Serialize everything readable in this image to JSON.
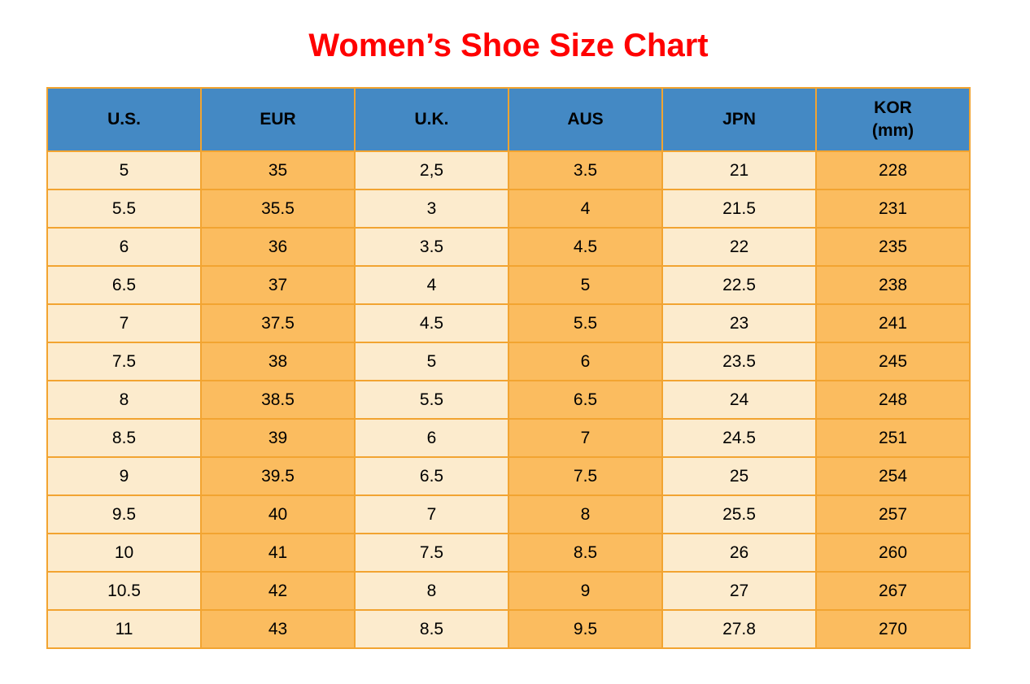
{
  "page": {
    "title": "Women’s Shoe Size Chart"
  },
  "colors": {
    "page_bg": "#FFFFFF",
    "title_text": "#FF0000",
    "header_bg": "#4489C4",
    "header_text": "#000000",
    "cell_text": "#000000",
    "row_light": "#FCEBCD",
    "row_dark": "#FBBC5F",
    "border": "#F2A431"
  },
  "table": {
    "headers": [
      "U.S.",
      "EUR",
      "U.K.",
      "AUS",
      "JPN",
      "KOR\n(mm)"
    ],
    "header_keys": [
      "us",
      "eur",
      "uk",
      "aus",
      "jpn",
      "kor-mm"
    ],
    "column_shades": [
      "light",
      "dark",
      "light",
      "dark",
      "light",
      "dark"
    ]
  },
  "chart_data": {
    "type": "table",
    "title": "Women’s Shoe Size Chart",
    "columns": [
      "U.S.",
      "EUR",
      "U.K.",
      "AUS",
      "JPN",
      "KOR (mm)"
    ],
    "rows": [
      [
        "5",
        "35",
        "2,5",
        "3.5",
        "21",
        "228"
      ],
      [
        "5.5",
        "35.5",
        "3",
        "4",
        "21.5",
        "231"
      ],
      [
        "6",
        "36",
        "3.5",
        "4.5",
        "22",
        "235"
      ],
      [
        "6.5",
        "37",
        "4",
        "5",
        "22.5",
        "238"
      ],
      [
        "7",
        "37.5",
        "4.5",
        "5.5",
        "23",
        "241"
      ],
      [
        "7.5",
        "38",
        "5",
        "6",
        "23.5",
        "245"
      ],
      [
        "8",
        "38.5",
        "5.5",
        "6.5",
        "24",
        "248"
      ],
      [
        "8.5",
        "39",
        "6",
        "7",
        "24.5",
        "251"
      ],
      [
        "9",
        "39.5",
        "6.5",
        "7.5",
        "25",
        "254"
      ],
      [
        "9.5",
        "40",
        "7",
        "8",
        "25.5",
        "257"
      ],
      [
        "10",
        "41",
        "7.5",
        "8.5",
        "26",
        "260"
      ],
      [
        "10.5",
        "42",
        "8",
        "9",
        "27",
        "267"
      ],
      [
        "11",
        "43",
        "8.5",
        "9.5",
        "27.8",
        "270"
      ]
    ]
  }
}
